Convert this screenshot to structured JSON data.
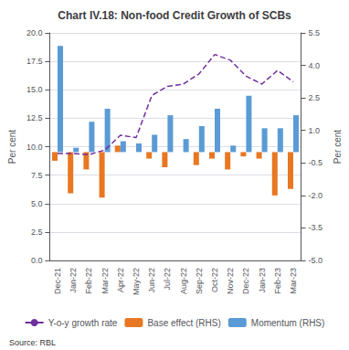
{
  "chart_data": {
    "type": "bar",
    "title": "Chart IV.18: Non-food Credit Growth of SCBs",
    "categories": [
      "Dec-21",
      "Jan-22",
      "Feb-22",
      "Mar-22",
      "Apr-22",
      "May-22",
      "Jun-22",
      "Jul-22",
      "Aug-22",
      "Sep-22",
      "Oct-22",
      "Nov-22",
      "Dec-22",
      "Jan-23",
      "Feb-23",
      "Mar-23"
    ],
    "series": [
      {
        "name": "Y-o-y growth rate",
        "type": "line",
        "line_style": "dashed",
        "color": "#7030A0",
        "values": [
          9.4,
          9.4,
          9.3,
          9.7,
          11.0,
          10.8,
          14.5,
          15.3,
          15.5,
          16.4,
          18.1,
          17.6,
          16.2,
          15.5,
          16.7,
          15.7
        ]
      },
      {
        "name": "Base effect (RHS)",
        "type": "bar",
        "axis": "y2",
        "color": "#E87722",
        "values": [
          -0.4,
          -1.9,
          -0.8,
          -2.1,
          0.3,
          0.0,
          -0.3,
          -0.7,
          0.0,
          -0.6,
          -0.3,
          -0.8,
          -0.2,
          -0.3,
          -2.0,
          -1.7
        ]
      },
      {
        "name": "Momentum (RHS)",
        "type": "bar",
        "axis": "y2",
        "color": "#5B9BD5",
        "values": [
          4.9,
          0.2,
          1.4,
          2.0,
          0.5,
          0.4,
          0.8,
          1.7,
          0.6,
          1.2,
          2.0,
          0.3,
          2.6,
          1.1,
          1.1,
          1.7
        ]
      }
    ],
    "ylabel": "Per cent",
    "y2label": "Per cent",
    "ylim": [
      0.0,
      20.0
    ],
    "yticks": [
      {
        "value": 0,
        "label": "0.0"
      },
      2.5,
      {
        "value": 5,
        "label": "5.0"
      },
      7.5,
      {
        "value": 10,
        "label": "10.0"
      },
      12.5,
      {
        "value": 15,
        "label": "15.0"
      },
      17.5,
      {
        "value": 20,
        "label": "20.0"
      }
    ],
    "y2lim": [
      -5.0,
      5.5
    ],
    "y2ticks": [
      {
        "value": -5,
        "label": "-5.0"
      },
      -3.5,
      {
        "value": -2,
        "label": "-2.0"
      },
      -0.5,
      {
        "value": 1,
        "label": "1.0"
      },
      2.5,
      {
        "value": 4,
        "label": "4.0"
      },
      5.5
    ],
    "grid": true,
    "legend": "bottom",
    "annotations": [
      "Source: RBL"
    ]
  }
}
